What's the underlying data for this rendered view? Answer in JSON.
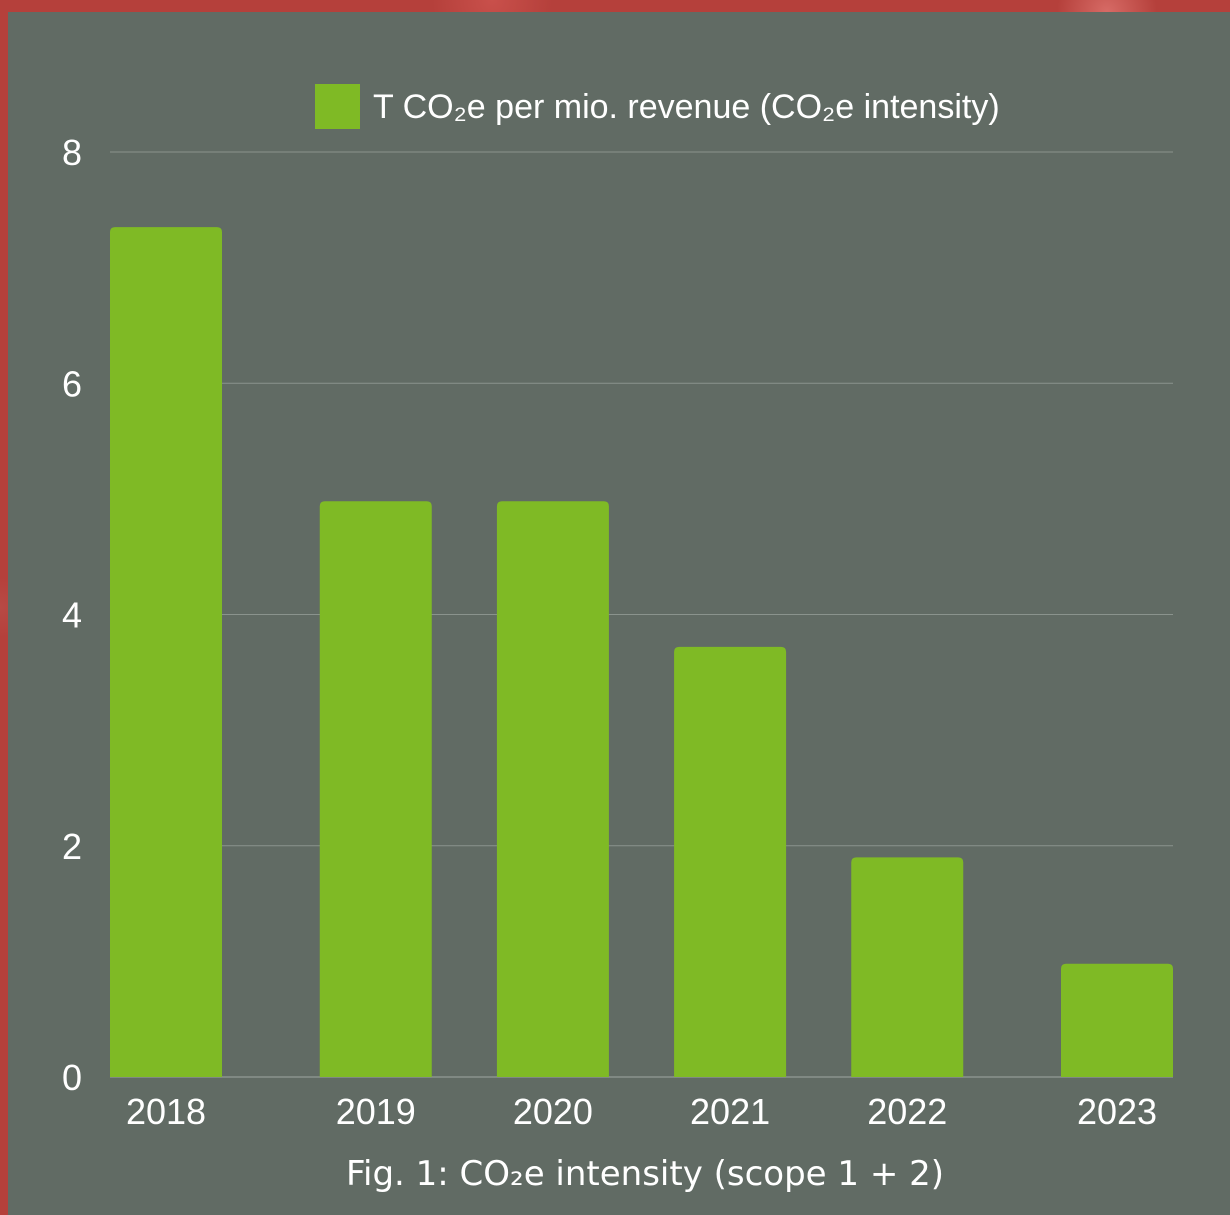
{
  "colors": {
    "bar": "#7fba25",
    "panel": "#616b64",
    "grid": "#8a938d",
    "text": "#ffffff"
  },
  "caption": "Fig. 1: CO₂e intensity (scope 1 + 2)",
  "chart_data": {
    "type": "bar",
    "categories": [
      "2018",
      "2019",
      "2020",
      "2021",
      "2022",
      "2023"
    ],
    "series": [
      {
        "name": "T CO₂e per mio. revenue (CO₂e intensity)",
        "values": [
          7.35,
          4.98,
          4.98,
          3.72,
          1.9,
          0.98
        ]
      }
    ],
    "ylim": [
      0,
      8
    ],
    "yticks": [
      "0",
      "2",
      "4",
      "6",
      "8"
    ],
    "legend_position": "top",
    "grid": true
  }
}
